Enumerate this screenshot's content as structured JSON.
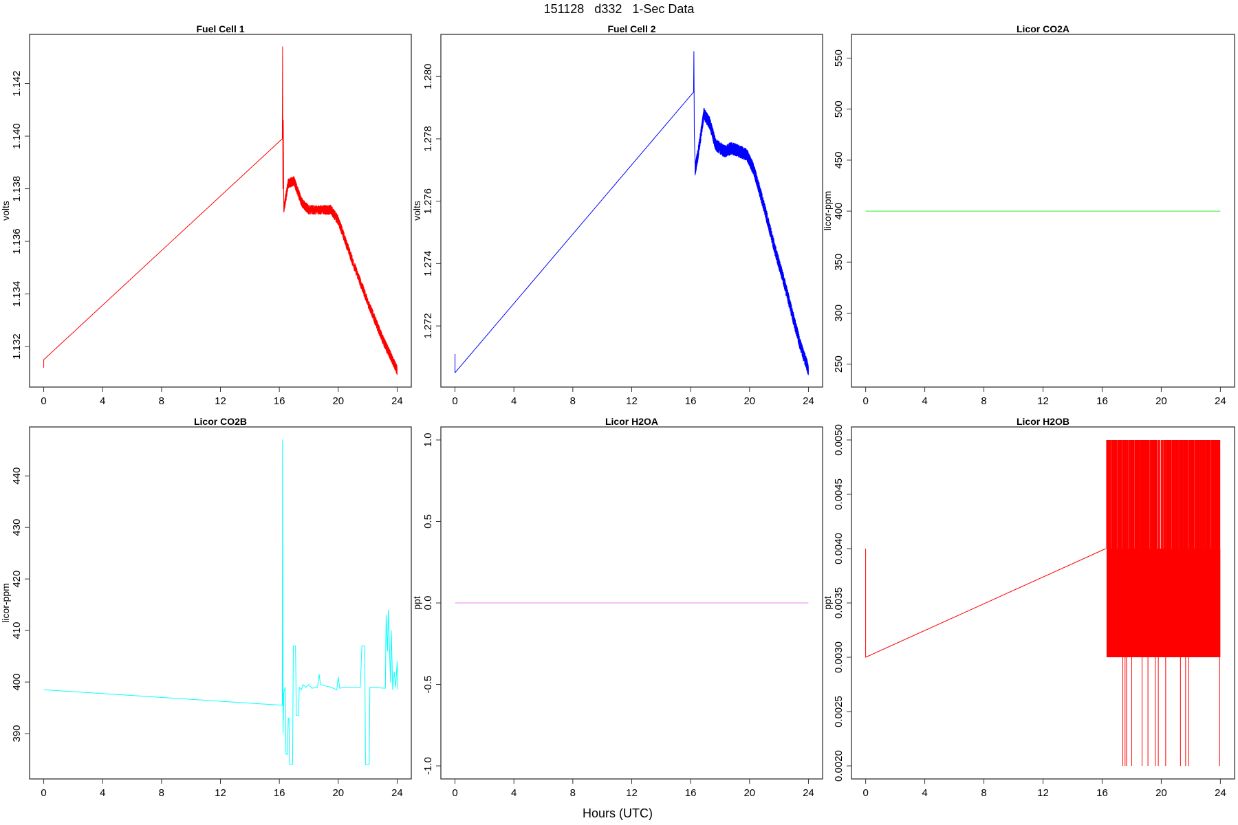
{
  "main_title": "151128   d332   1-Sec Data",
  "x_label": "Hours (UTC)",
  "chart_data": [
    {
      "type": "line",
      "title": "Fuel Cell 1",
      "ylabel": "volts",
      "color": "#ff0000",
      "xlim": [
        -0.96,
        24.96
      ],
      "ylim": [
        1.13046,
        1.14387
      ],
      "xticks": [
        "0",
        "4",
        "8",
        "12",
        "16",
        "20",
        "24"
      ],
      "yticks": [
        "1.132",
        "1.134",
        "1.136",
        "1.138",
        "1.140",
        "1.142"
      ],
      "points": [
        [
          0,
          1.1312
        ],
        [
          0,
          1.1315
        ],
        [
          16.2,
          1.1399
        ],
        [
          16.22,
          1.1434
        ],
        [
          16.24,
          1.138
        ],
        [
          16.27,
          1.1406
        ],
        [
          16.3,
          1.1372
        ],
        [
          16.6,
          1.1382
        ],
        [
          17.0,
          1.1383
        ],
        [
          17.5,
          1.1375
        ],
        [
          18.0,
          1.1372
        ],
        [
          19.0,
          1.1372
        ],
        [
          19.5,
          1.1372
        ],
        [
          20.0,
          1.1368
        ],
        [
          21.0,
          1.1352
        ],
        [
          22.0,
          1.1337
        ],
        [
          23.0,
          1.1323
        ],
        [
          23.5,
          1.1317
        ],
        [
          24.0,
          1.1311
        ]
      ],
      "noise_start": 16.3,
      "noise_halfwidth": 0.00018
    },
    {
      "type": "line",
      "title": "Fuel Cell 2",
      "ylabel": "volts",
      "color": "#0000ff",
      "xlim": [
        -0.96,
        24.96
      ],
      "ylim": [
        1.27004,
        1.28135
      ],
      "xticks": [
        "0",
        "4",
        "8",
        "12",
        "16",
        "20",
        "24"
      ],
      "yticks": [
        "1.272",
        "1.274",
        "1.276",
        "1.278",
        "1.280"
      ],
      "points": [
        [
          0,
          1.2711
        ],
        [
          0,
          1.2705
        ],
        [
          16.2,
          1.2795
        ],
        [
          16.22,
          1.2808
        ],
        [
          16.25,
          1.2782
        ],
        [
          16.3,
          1.277
        ],
        [
          16.5,
          1.2775
        ],
        [
          16.9,
          1.2788
        ],
        [
          17.3,
          1.2785
        ],
        [
          17.7,
          1.2778
        ],
        [
          18.3,
          1.2776
        ],
        [
          18.8,
          1.2777
        ],
        [
          19.3,
          1.2776
        ],
        [
          19.8,
          1.2775
        ],
        [
          20.3,
          1.277
        ],
        [
          21.0,
          1.2758
        ],
        [
          21.7,
          1.2745
        ],
        [
          22.3,
          1.2735
        ],
        [
          23.0,
          1.2722
        ],
        [
          23.5,
          1.2713
        ],
        [
          24.0,
          1.2706
        ]
      ],
      "noise_start": 16.3,
      "noise_halfwidth": 0.0002
    },
    {
      "type": "line",
      "title": "Licor CO2A",
      "ylabel": "licor-ppm",
      "color": "#33ee33",
      "xlim": [
        -0.96,
        24.96
      ],
      "ylim": [
        227.5,
        573.3
      ],
      "xticks": [
        "0",
        "4",
        "8",
        "12",
        "16",
        "20",
        "24"
      ],
      "yticks": [
        "250",
        "300",
        "350",
        "400",
        "450",
        "500",
        "550"
      ],
      "points": [
        [
          0,
          400
        ],
        [
          24,
          400
        ]
      ]
    },
    {
      "type": "line",
      "title": "Licor CO2B",
      "ylabel": "licor-ppm",
      "color": "#00ffff",
      "xlim": [
        -0.96,
        24.96
      ],
      "ylim": [
        381.2,
        449.5
      ],
      "xticks": [
        "0",
        "4",
        "8",
        "12",
        "16",
        "20",
        "24"
      ],
      "yticks": [
        "390",
        "400",
        "410",
        "420",
        "430",
        "440"
      ],
      "points": [
        [
          0,
          398.5
        ],
        [
          16.2,
          395.5
        ],
        [
          16.22,
          447
        ],
        [
          16.25,
          390
        ],
        [
          16.3,
          398
        ],
        [
          16.4,
          399
        ],
        [
          16.45,
          386
        ],
        [
          16.55,
          386
        ],
        [
          16.6,
          393
        ],
        [
          16.65,
          393
        ],
        [
          16.7,
          384
        ],
        [
          16.9,
          384
        ],
        [
          16.95,
          407
        ],
        [
          17.1,
          407
        ],
        [
          17.15,
          393.5
        ],
        [
          17.3,
          393.5
        ],
        [
          17.35,
          399
        ],
        [
          17.5,
          398.5
        ],
        [
          17.6,
          399.5
        ],
        [
          17.8,
          399
        ],
        [
          18.0,
          399.5
        ],
        [
          18.2,
          398.8
        ],
        [
          18.6,
          399
        ],
        [
          18.7,
          401.5
        ],
        [
          18.8,
          399.5
        ],
        [
          19.5,
          399
        ],
        [
          19.9,
          398.5
        ],
        [
          20.0,
          401
        ],
        [
          20.1,
          398.8
        ],
        [
          20.4,
          399
        ],
        [
          21.5,
          399
        ],
        [
          21.6,
          407
        ],
        [
          21.8,
          407
        ],
        [
          21.85,
          384
        ],
        [
          22.1,
          384
        ],
        [
          22.15,
          399
        ],
        [
          23.2,
          398.8
        ],
        [
          23.25,
          413
        ],
        [
          23.35,
          406
        ],
        [
          23.4,
          414
        ],
        [
          23.55,
          400
        ],
        [
          23.6,
          410
        ],
        [
          23.7,
          398.5
        ],
        [
          23.8,
          402
        ],
        [
          23.9,
          399
        ],
        [
          24.0,
          404
        ],
        [
          24.05,
          398.5
        ]
      ]
    },
    {
      "type": "line",
      "title": "Licor H2OA",
      "ylabel": "ppt",
      "color": "#ee82ee",
      "xlim": [
        -0.96,
        24.96
      ],
      "ylim": [
        -1.08,
        1.08
      ],
      "xticks": [
        "0",
        "4",
        "8",
        "12",
        "16",
        "20",
        "24"
      ],
      "yticks": [
        "-1.0",
        "-0.5",
        "0.0",
        "0.5",
        "1.0"
      ],
      "points": [
        [
          0,
          0
        ],
        [
          24,
          0
        ]
      ]
    },
    {
      "type": "line",
      "title": "Licor H2OB",
      "ylabel": "ppt",
      "color": "#ff0000",
      "xlim": [
        -0.96,
        24.96
      ],
      "ylim": [
        0.00188,
        0.00512
      ],
      "xticks": [
        "0",
        "4",
        "8",
        "12",
        "16",
        "20",
        "24"
      ],
      "yticks": [
        "0.0020",
        "0.0025",
        "0.0030",
        "0.0035",
        "0.0040",
        "0.0045",
        "0.0050"
      ],
      "points": [
        [
          0,
          0.004
        ],
        [
          0,
          0.003
        ],
        [
          16.25,
          0.004
        ]
      ],
      "oscillation": {
        "start": 16.3,
        "end": 24.0,
        "low": 0.003,
        "high": 0.004,
        "spike_high": 0.005,
        "spike_low": 0.002,
        "low_spike_hours": [
          17.4,
          17.55,
          17.65,
          18.0,
          18.7,
          19.1,
          19.6,
          19.8,
          20.3,
          21.3,
          21.65,
          21.85,
          23.95
        ]
      }
    }
  ]
}
